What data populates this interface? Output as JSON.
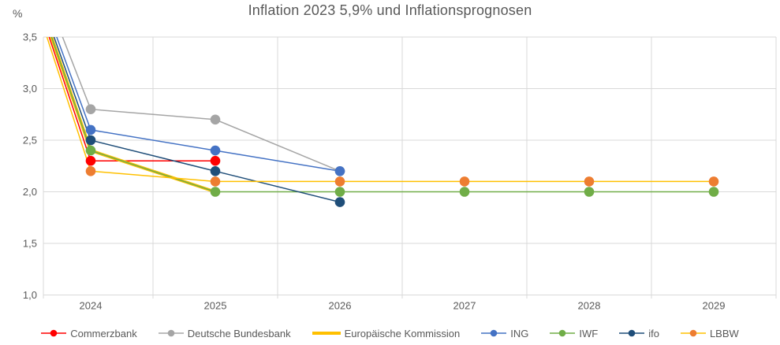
{
  "title": "Inflation 2023 5,9% und Inflationsprognosen",
  "colors": {
    "grid": "#D9D9D9",
    "axis_text": "#595959",
    "title_text": "#595959"
  },
  "axis": {
    "y_unit_label": "%",
    "y_tick_labels": [
      "3,5",
      "3,0",
      "2,5",
      "2,0",
      "1,5",
      "1,0"
    ],
    "x_tick_labels": [
      "2024",
      "2025",
      "2026",
      "2027",
      "2028",
      "2029"
    ]
  },
  "chart_data": {
    "type": "line",
    "title": "Inflation 2023 5,9% und Inflationsprognosen",
    "ylabel": "%",
    "xlabel": "",
    "ylim": [
      1.0,
      3.5
    ],
    "y_step": 0.5,
    "grid": true,
    "legend_position": "bottom",
    "categories": [
      "2024",
      "2025",
      "2026",
      "2027",
      "2028",
      "2029"
    ],
    "origin": {
      "year": "2023",
      "value": 5.9,
      "note": "Inflation 2023: 5,9% (off-chart start point of all lines)"
    },
    "series": [
      {
        "name": "Commerzbank",
        "line_color": "#FF0000",
        "marker_color": "#FF0000",
        "marker": true,
        "thick": false,
        "values": [
          2.3,
          2.3,
          null,
          null,
          null,
          null
        ]
      },
      {
        "name": "Deutsche Bundesbank",
        "line_color": "#A5A5A5",
        "marker_color": "#A5A5A5",
        "marker": true,
        "thick": false,
        "values": [
          2.8,
          2.7,
          2.2,
          null,
          null,
          null
        ]
      },
      {
        "name": "Europäische Kommission",
        "line_color": "#FFC000",
        "marker_color": "#FFC000",
        "marker": false,
        "thick": true,
        "values": [
          2.4,
          2.0,
          null,
          null,
          null,
          null
        ]
      },
      {
        "name": "ING",
        "line_color": "#4472C4",
        "marker_color": "#4472C4",
        "marker": true,
        "thick": false,
        "values": [
          2.6,
          2.4,
          2.2,
          null,
          null,
          null
        ]
      },
      {
        "name": "IWF",
        "line_color": "#70AD47",
        "marker_color": "#70AD47",
        "marker": true,
        "thick": false,
        "values": [
          2.4,
          2.0,
          2.0,
          2.0,
          2.0,
          2.0
        ]
      },
      {
        "name": "ifo",
        "line_color": "#1F4E79",
        "marker_color": "#1F4E79",
        "marker": true,
        "thick": false,
        "values": [
          2.5,
          2.2,
          1.9,
          null,
          null,
          null
        ]
      },
      {
        "name": "LBBW",
        "line_color": "#FFC000",
        "marker_color": "#ED7D31",
        "marker": true,
        "thick": false,
        "values": [
          2.2,
          2.1,
          2.1,
          2.1,
          2.1,
          2.1
        ]
      }
    ]
  }
}
